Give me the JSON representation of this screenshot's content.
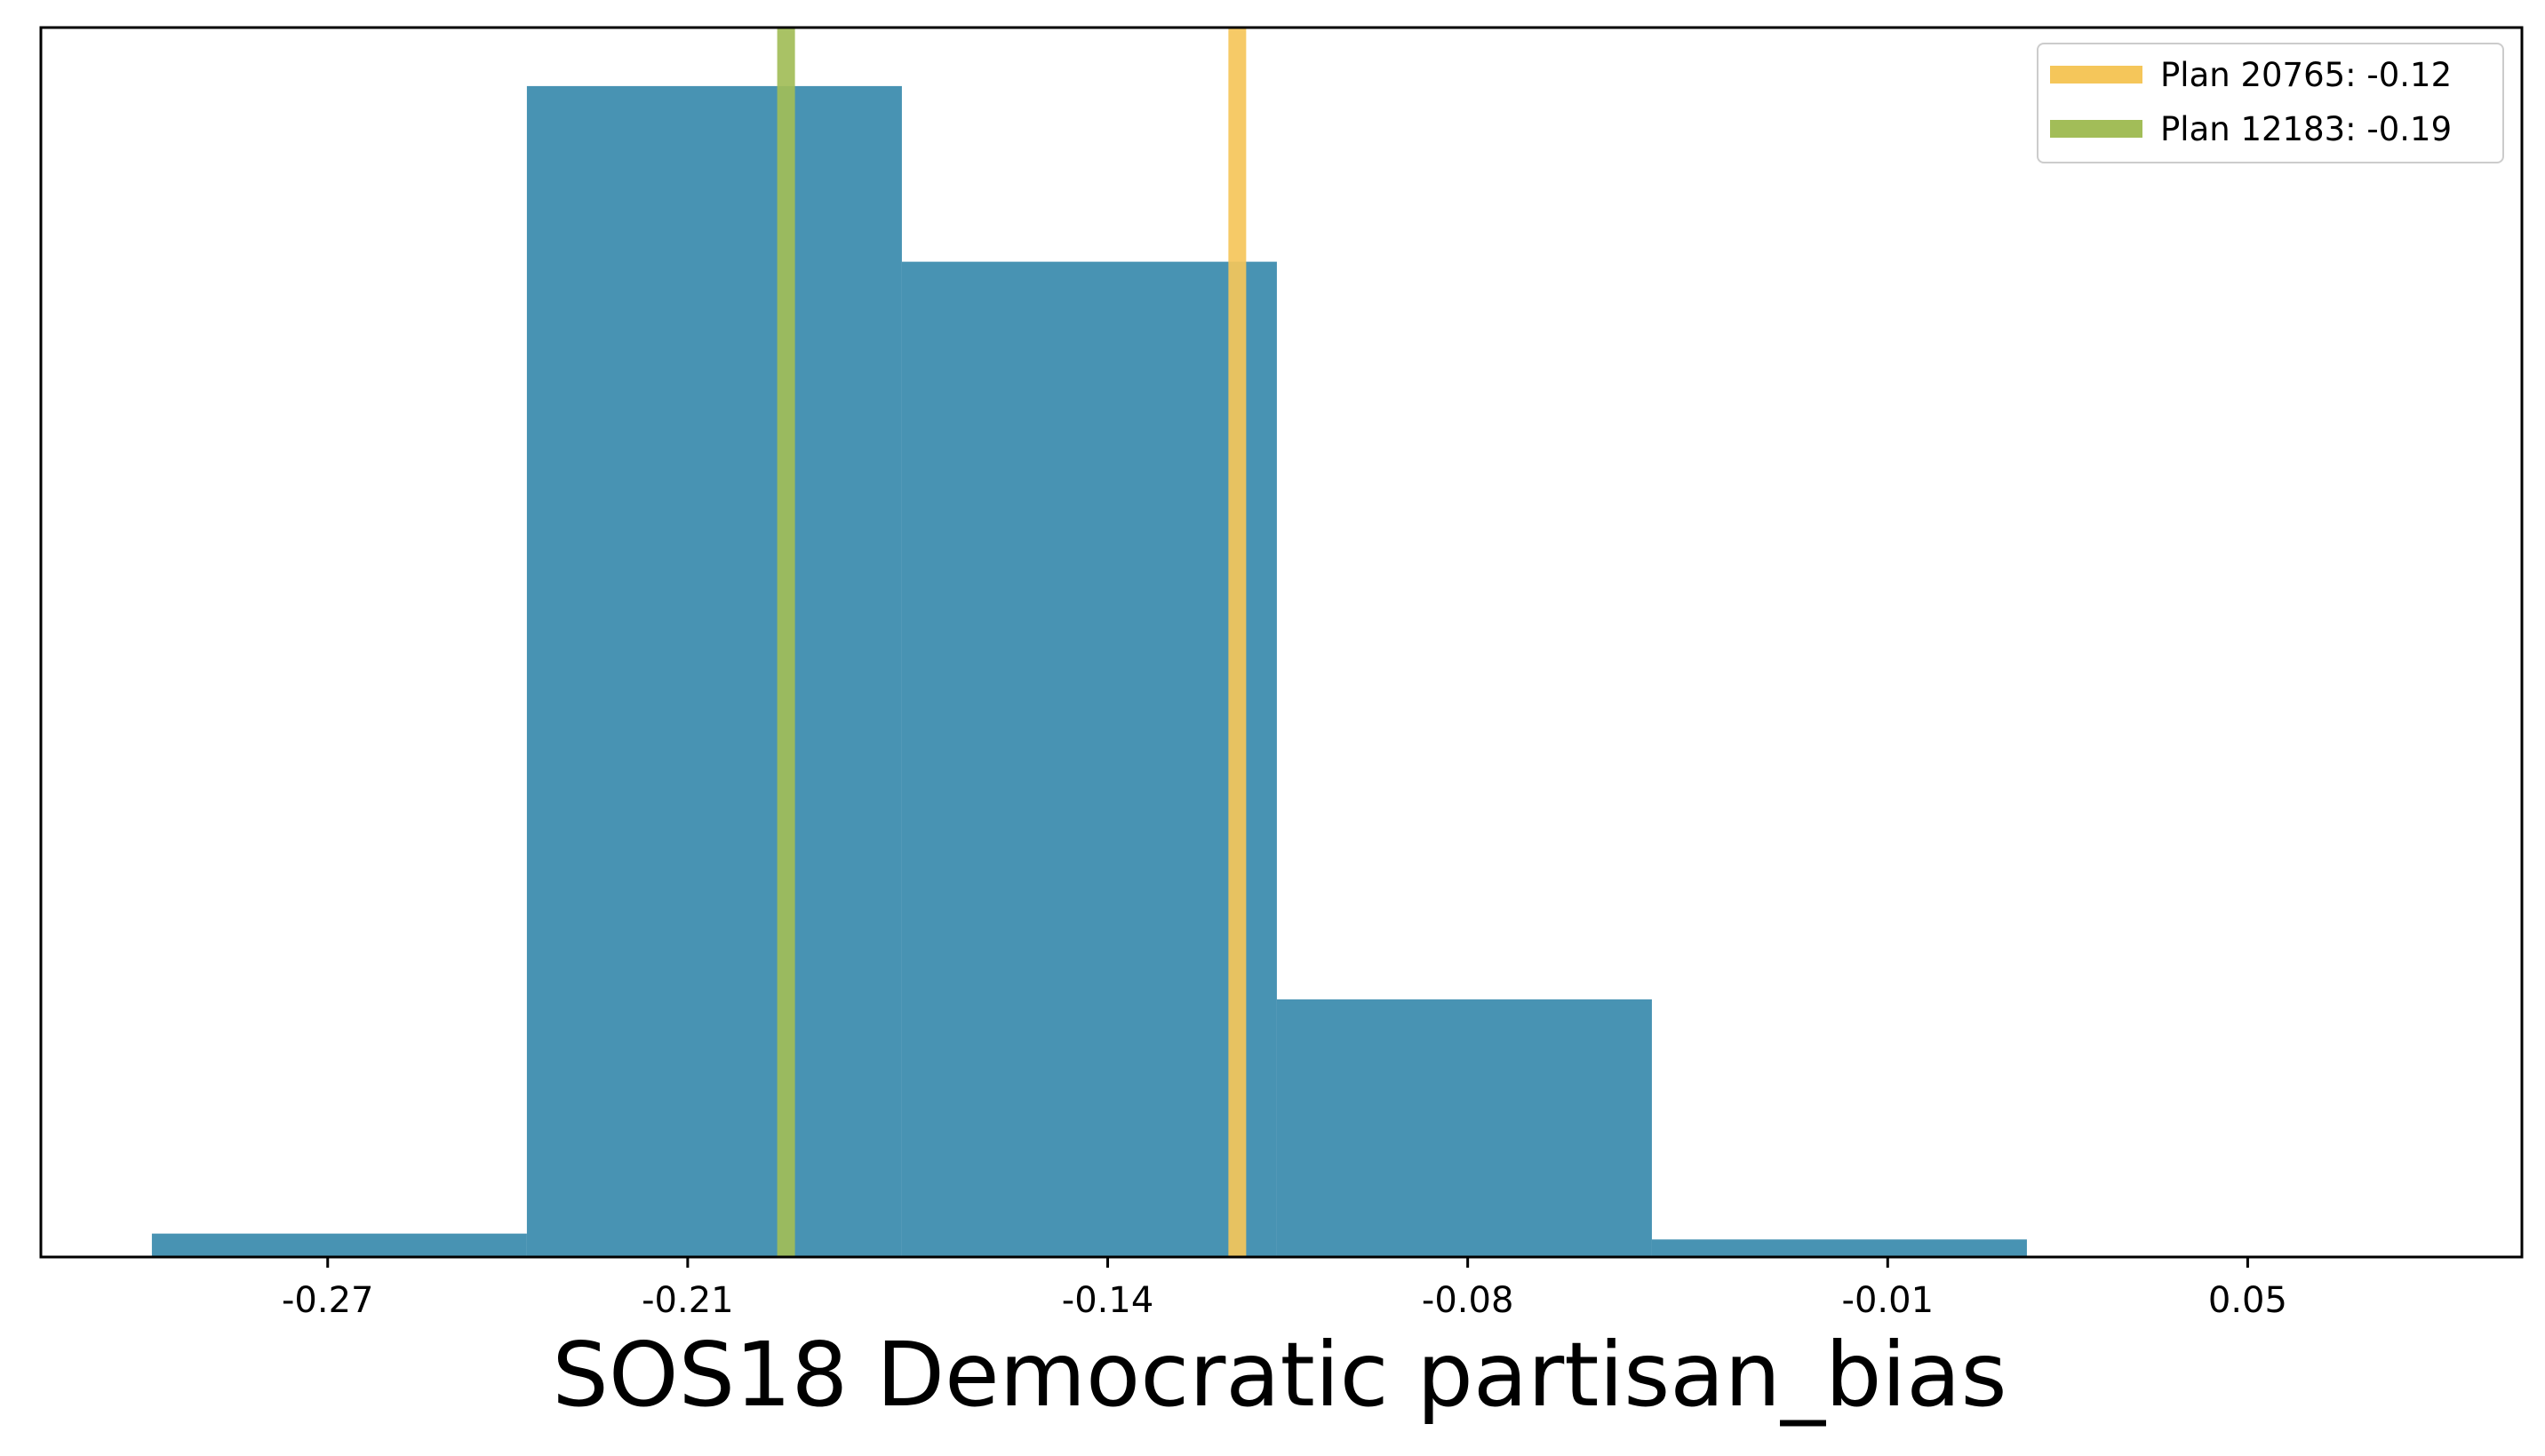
{
  "chart_data": {
    "type": "bar",
    "title": "",
    "xlabel": "SOS18 Democratic partisan_bias",
    "ylabel": "",
    "xlim": [
      -0.3178,
      0.0957
    ],
    "ylim": [
      0,
      1.05
    ],
    "y_ticks_shown": false,
    "grid": false,
    "x_ticks": [
      -0.27,
      -0.21,
      -0.14,
      -0.08,
      -0.01,
      0.05
    ],
    "x_tick_labels": [
      "-0.27",
      "-0.21",
      "-0.14",
      "-0.08",
      "-0.01",
      "0.05"
    ],
    "bins": [
      {
        "start": -0.2993,
        "end": -0.2368,
        "value": 0.02
      },
      {
        "start": -0.2368,
        "end": -0.1743,
        "value": 1.0
      },
      {
        "start": -0.1743,
        "end": -0.1118,
        "value": 0.85
      },
      {
        "start": -0.1118,
        "end": -0.0493,
        "value": 0.22
      },
      {
        "start": -0.0493,
        "end": 0.0132,
        "value": 0.015
      }
    ],
    "bar_color": "#4893b3",
    "reference_lines": [
      {
        "name": "Plan 20765: -0.12",
        "x": -0.1184,
        "color": "#f5c65a"
      },
      {
        "name": "Plan 12183: -0.19",
        "x": -0.1936,
        "color": "#a2bd58"
      }
    ],
    "legend_position": "top-right"
  }
}
